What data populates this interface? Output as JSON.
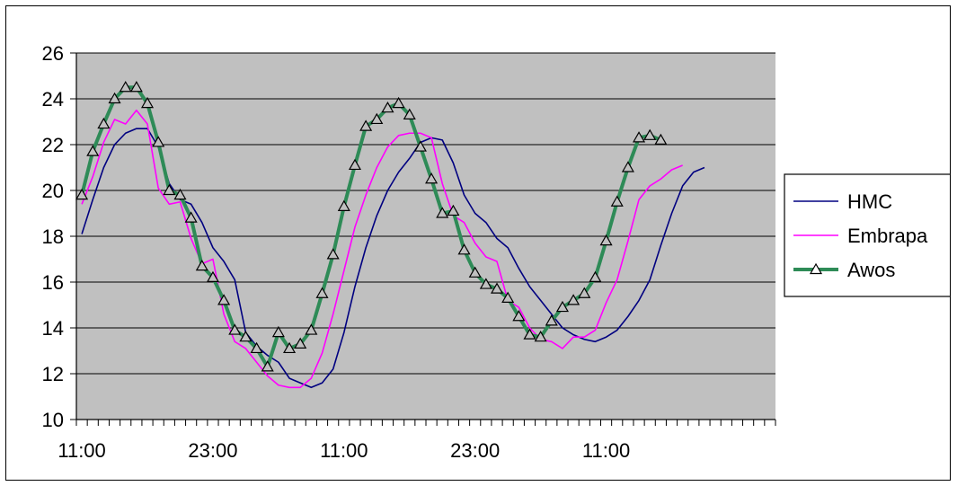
{
  "chart_data": {
    "type": "line",
    "title": "",
    "xlabel": "",
    "ylabel": "",
    "ylim": [
      10,
      26
    ],
    "yticks": [
      10,
      12,
      14,
      16,
      18,
      20,
      22,
      24,
      26
    ],
    "xtick_labels": [
      "11:00",
      "23:00",
      "11:00",
      "23:00",
      "11:00"
    ],
    "xtick_positions": [
      0,
      12,
      24,
      36,
      48
    ],
    "grid": "horizontal",
    "plot_background": "#c0c0c0",
    "legend_position": "right",
    "series": [
      {
        "name": "HMC",
        "color": "#000080",
        "marker": "none",
        "values": [
          18.1,
          19.6,
          21.0,
          22.0,
          22.5,
          22.7,
          22.7,
          21.9,
          20.3,
          19.6,
          19.4,
          18.6,
          17.5,
          16.9,
          16.1,
          13.8,
          13.2,
          12.8,
          12.5,
          11.8,
          11.6,
          11.4,
          11.6,
          12.2,
          13.8,
          15.8,
          17.5,
          18.9,
          20.0,
          20.8,
          21.4,
          22.1,
          22.3,
          22.2,
          21.2,
          19.8,
          19.0,
          18.6,
          17.9,
          17.5,
          16.6,
          15.8,
          15.2,
          14.6,
          14.0,
          13.7,
          13.5,
          13.4,
          13.6,
          13.9,
          14.5,
          15.2,
          16.1,
          17.6,
          19.0,
          20.2,
          20.8,
          21.0
        ]
      },
      {
        "name": "Embrapa",
        "color": "#ff00ff",
        "marker": "none",
        "values": [
          19.4,
          20.6,
          22.1,
          23.1,
          22.9,
          23.5,
          22.9,
          20.1,
          19.4,
          19.5,
          17.9,
          16.8,
          17.0,
          14.6,
          13.4,
          13.1,
          12.5,
          11.9,
          11.5,
          11.4,
          11.4,
          11.8,
          12.9,
          14.6,
          16.5,
          18.4,
          19.8,
          21.0,
          21.9,
          22.4,
          22.5,
          22.5,
          22.3,
          20.3,
          18.9,
          18.6,
          17.7,
          17.1,
          16.9,
          15.2,
          14.9,
          14.0,
          13.5,
          13.4,
          13.1,
          13.6,
          13.6,
          13.9,
          15.1,
          16.1,
          17.8,
          19.6,
          20.2,
          20.5,
          20.9,
          21.1
        ]
      },
      {
        "name": "Awos",
        "color": "#2e8b57",
        "marker": "triangle",
        "values": [
          19.8,
          21.7,
          22.9,
          24.0,
          24.5,
          24.5,
          23.8,
          22.1,
          20.0,
          19.8,
          18.8,
          16.7,
          16.2,
          15.2,
          13.9,
          13.6,
          13.1,
          12.3,
          13.8,
          13.1,
          13.3,
          13.9,
          15.5,
          17.2,
          19.3,
          21.1,
          22.8,
          23.1,
          23.6,
          23.8,
          23.3,
          21.9,
          20.5,
          19.0,
          19.1,
          17.4,
          16.4,
          15.9,
          15.7,
          15.3,
          14.5,
          13.7,
          13.6,
          14.3,
          14.9,
          15.2,
          15.5,
          16.2,
          17.8,
          19.5,
          21.0,
          22.3,
          22.4,
          22.2
        ]
      }
    ]
  }
}
